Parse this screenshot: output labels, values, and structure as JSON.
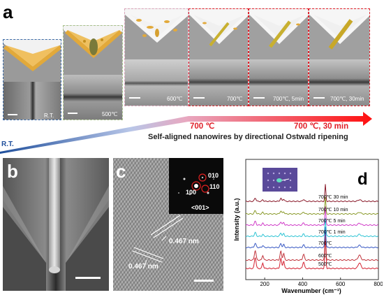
{
  "figure": {
    "panel_a": {
      "letter": "a",
      "stages": [
        {
          "label": "R.T."
        },
        {
          "label": "500℃"
        },
        {
          "label": "600℃"
        },
        {
          "label": "700℃"
        },
        {
          "label": "700℃, 5min"
        },
        {
          "label": "700℃, 30min"
        }
      ],
      "arrow_start_label": "700 ℃",
      "arrow_end_label": "700 ℃, 30 min",
      "left_temp": "R.T.",
      "caption": "Self-aligned nanowires by directional Ostwald ripening",
      "colors": {
        "red_frame": "#e0202a",
        "blue_frame": "#3a6aa8",
        "gold": "#e2a93a"
      }
    },
    "panel_b": {
      "letter": "b"
    },
    "panel_c": {
      "letter": "c",
      "fft_labels": [
        "010",
        "100",
        "110",
        "<001>"
      ],
      "spacing_labels": [
        "0.467 nm",
        "0.467 nm"
      ]
    },
    "panel_d": {
      "letter": "d",
      "chart_data": {
        "type": "line",
        "xlabel": "Wavenumber (cm⁻¹)",
        "ylabel": "Intensity (a.u.)",
        "xlim": [
          100,
          800
        ],
        "xticks": [
          "200",
          "400",
          "600",
          "800"
        ],
        "series": [
          {
            "name": "500℃",
            "color": "#d42030"
          },
          {
            "name": "600℃",
            "color": "#c0323a"
          },
          {
            "name": "700℃",
            "color": "#3b5bc4"
          },
          {
            "name": "700℃ 1 min",
            "color": "#2fc4d4"
          },
          {
            "name": "700℃ 5 min",
            "color": "#d03cc8"
          },
          {
            "name": "700℃ 10 min",
            "color": "#8a9a2a"
          },
          {
            "name": "700℃ 30 min",
            "color": "#8a1a2a"
          }
        ]
      }
    }
  }
}
